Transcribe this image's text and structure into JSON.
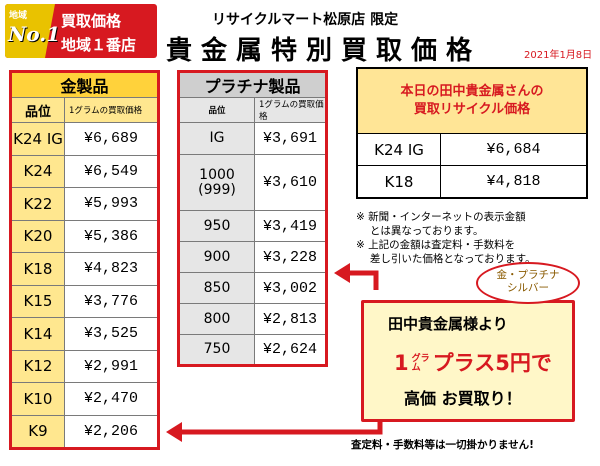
{
  "badge": {
    "area_label": "地域",
    "no1": "No.1",
    "line1": "買取価格",
    "line2": "地域１番店"
  },
  "header": {
    "store": "リサイクルマート松原店 限定",
    "headline": "貴金属特別買取価格",
    "date": "2021年1月8日"
  },
  "gold": {
    "title": "金製品",
    "col_grade": "品位",
    "col_price": "1グラムの買取価格",
    "rows": [
      {
        "grade": "K24 IG",
        "price": "¥6,689"
      },
      {
        "grade": "K24",
        "price": "¥6,549"
      },
      {
        "grade": "K22",
        "price": "¥5,993"
      },
      {
        "grade": "K20",
        "price": "¥5,386"
      },
      {
        "grade": "K18",
        "price": "¥4,823"
      },
      {
        "grade": "K15",
        "price": "¥3,776"
      },
      {
        "grade": "K14",
        "price": "¥3,525"
      },
      {
        "grade": "K12",
        "price": "¥2,991"
      },
      {
        "grade": "K10",
        "price": "¥2,470"
      },
      {
        "grade": "K9",
        "price": "¥2,206"
      }
    ]
  },
  "platinum": {
    "title": "プラチナ製品",
    "col_grade": "品位",
    "col_price": "1グラムの買取価格",
    "rows": [
      {
        "grade": "IG",
        "grade2": "",
        "price": "¥3,691"
      },
      {
        "grade": "1000",
        "grade2": "(999)",
        "price": "¥3,610"
      },
      {
        "grade": "950",
        "grade2": "",
        "price": "¥3,419"
      },
      {
        "grade": "900",
        "grade2": "",
        "price": "¥3,228"
      },
      {
        "grade": "850",
        "grade2": "",
        "price": "¥3,002"
      },
      {
        "grade": "800",
        "grade2": "",
        "price": "¥2,813"
      },
      {
        "grade": "750",
        "grade2": "",
        "price": "¥2,624"
      }
    ]
  },
  "tanaka": {
    "title1": "本日の田中貴金属さんの",
    "title2": "買取リサイクル価格",
    "rows": [
      {
        "grade": "K24 IG",
        "price": "¥6,684"
      },
      {
        "grade": "K18",
        "price": "¥4,818"
      }
    ]
  },
  "notes": [
    "※ 新聞・インターネットの表示金額",
    "　 とは異なっております。",
    "※ 上記の金額は査定料・手数料を",
    "　 差し引いた価格となっております。"
  ],
  "bubble": {
    "line1": "金・プラチナ",
    "line2": "シルバー"
  },
  "promo": {
    "top": "田中貴金属様より",
    "num": "1",
    "gram_top": "グラ",
    "gram_bot": "ム",
    "plus": "プラス5円で",
    "bottom": "高価 お買取り！"
  },
  "footer": "査定料・手数料等は一切掛かりません!",
  "colors": {
    "accent_red": "#d71920",
    "gold_header": "#ffd23b",
    "gold_cell": "#ffe78f",
    "plat_header": "#cfcfcf"
  }
}
